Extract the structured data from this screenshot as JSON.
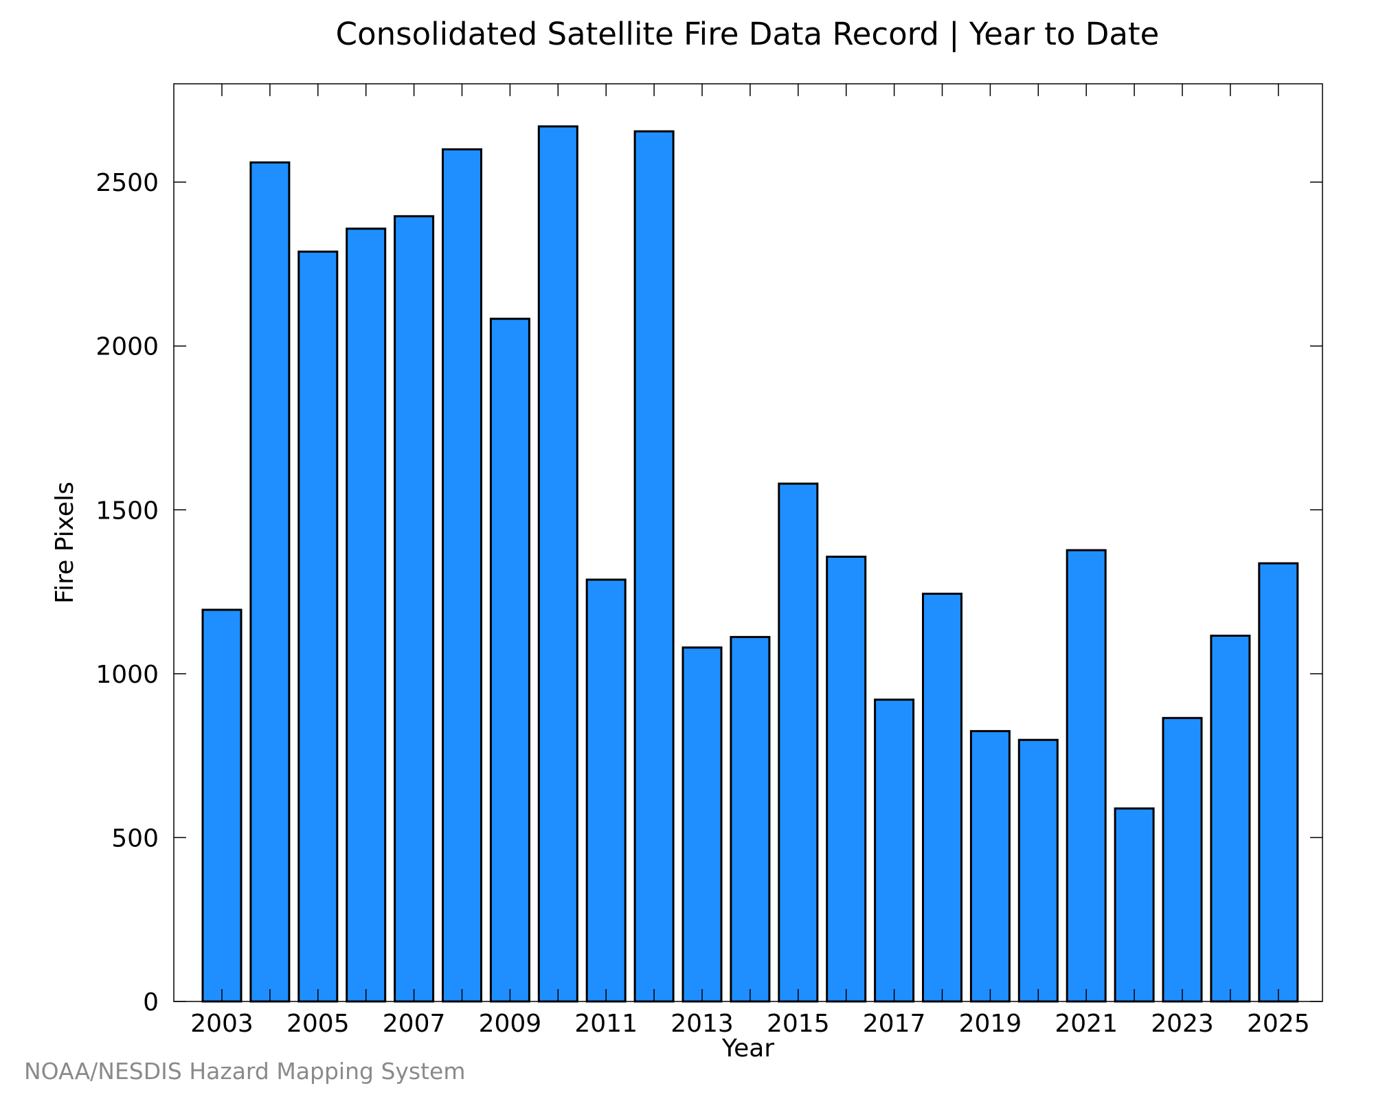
{
  "chart_data": {
    "type": "bar",
    "title": "Consolidated Satellite Fire Data Record | Year to Date",
    "xlabel": "Year",
    "ylabel": "Fire Pixels",
    "categories": [
      "2003",
      "2004",
      "2005",
      "2006",
      "2007",
      "2008",
      "2009",
      "2010",
      "2011",
      "2012",
      "2013",
      "2014",
      "2015",
      "2016",
      "2017",
      "2018",
      "2019",
      "2020",
      "2021",
      "2022",
      "2023",
      "2024",
      "2025"
    ],
    "values": [
      1195,
      2560,
      2288,
      2358,
      2396,
      2600,
      2083,
      2670,
      1287,
      2655,
      1080,
      1112,
      1580,
      1357,
      921,
      1244,
      825,
      798,
      1377,
      589,
      865,
      1116,
      1337
    ],
    "x_tick_labels": [
      "2003",
      "2005",
      "2007",
      "2009",
      "2011",
      "2013",
      "2015",
      "2017",
      "2019",
      "2021",
      "2023",
      "2025"
    ],
    "y_tick_labels": [
      "0",
      "500",
      "1000",
      "1500",
      "2000",
      "2500"
    ],
    "y_ticks": [
      0,
      500,
      1000,
      1500,
      2000,
      2500
    ],
    "ylim": [
      0,
      2800
    ],
    "grid": false,
    "bar_color": "#1f8fff",
    "bar_edge_color": "#000000"
  },
  "credit": "NOAA/NESDIS Hazard Mapping System"
}
